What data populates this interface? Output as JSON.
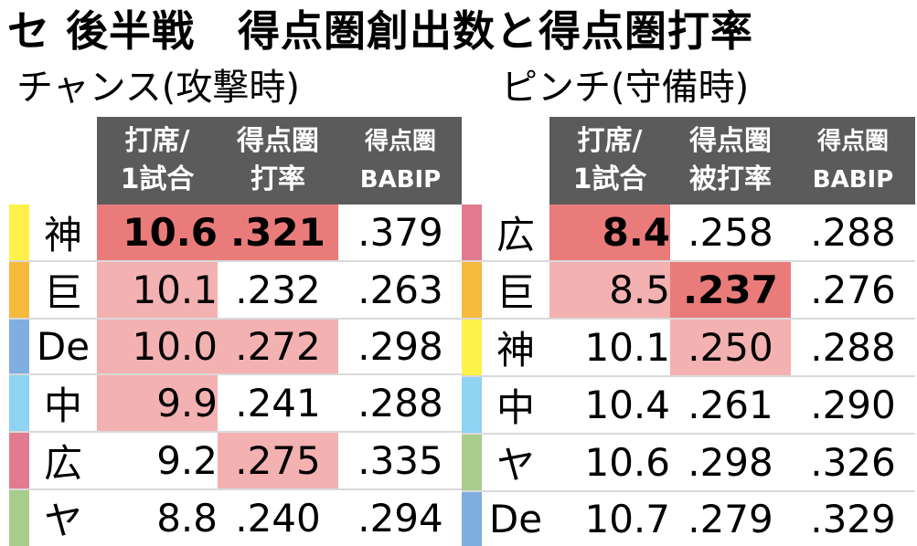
{
  "title": "セ 後半戦　得点圏創出数と得点圏打率",
  "colors": {
    "header_bg": "#5b5b5b",
    "highlight_strong": "#ea7b7b",
    "highlight_light": "#f3b1b1",
    "row_divider": "#d9d9d9",
    "team_colors": {
      "神": "#fdf14a",
      "巨": "#f5b93c",
      "De": "#7faee0",
      "中": "#8fd3f3",
      "広": "#e27b8f",
      "ヤ": "#a8cd8a"
    }
  },
  "chart_data": [
    {
      "type": "table",
      "title": "チャンス(攻撃時)",
      "columns": [
        {
          "line1": "打席/",
          "line2": "1試合"
        },
        {
          "line1": "得点圏",
          "line2": "打率"
        },
        {
          "line1": "得点圏",
          "line2": "BABIP"
        }
      ],
      "rows": [
        {
          "team": "神",
          "team_color": "#fdf14a",
          "values": [
            "10.6",
            ".321",
            ".379"
          ],
          "highlight": [
            "strong",
            "strong",
            "none"
          ]
        },
        {
          "team": "巨",
          "team_color": "#f5b93c",
          "values": [
            "10.1",
            ".232",
            ".263"
          ],
          "highlight": [
            "light",
            "none",
            "none"
          ]
        },
        {
          "team": "De",
          "team_color": "#7faee0",
          "values": [
            "10.0",
            ".272",
            ".298"
          ],
          "highlight": [
            "light",
            "light",
            "none"
          ]
        },
        {
          "team": "中",
          "team_color": "#8fd3f3",
          "values": [
            "9.9",
            ".241",
            ".288"
          ],
          "highlight": [
            "light",
            "none",
            "none"
          ]
        },
        {
          "team": "広",
          "team_color": "#e27b8f",
          "values": [
            "9.2",
            ".275",
            ".335"
          ],
          "highlight": [
            "none",
            "light",
            "none"
          ]
        },
        {
          "team": "ヤ",
          "team_color": "#a8cd8a",
          "values": [
            "8.8",
            ".240",
            ".294"
          ],
          "highlight": [
            "none",
            "none",
            "none"
          ]
        }
      ]
    },
    {
      "type": "table",
      "title": "ピンチ(守備時)",
      "columns": [
        {
          "line1": "打席/",
          "line2": "1試合"
        },
        {
          "line1": "得点圏",
          "line2": "被打率"
        },
        {
          "line1": "得点圏",
          "line2": "BABIP"
        }
      ],
      "rows": [
        {
          "team": "広",
          "team_color": "#e27b8f",
          "values": [
            "8.4",
            ".258",
            ".288"
          ],
          "highlight": [
            "strong",
            "none",
            "none"
          ]
        },
        {
          "team": "巨",
          "team_color": "#f5b93c",
          "values": [
            "8.5",
            ".237",
            ".276"
          ],
          "highlight": [
            "light",
            "strong",
            "none"
          ]
        },
        {
          "team": "神",
          "team_color": "#fdf14a",
          "values": [
            "10.1",
            ".250",
            ".288"
          ],
          "highlight": [
            "none",
            "light",
            "none"
          ]
        },
        {
          "team": "中",
          "team_color": "#8fd3f3",
          "values": [
            "10.4",
            ".261",
            ".290"
          ],
          "highlight": [
            "none",
            "none",
            "none"
          ]
        },
        {
          "team": "ヤ",
          "team_color": "#a8cd8a",
          "values": [
            "10.6",
            ".298",
            ".326"
          ],
          "highlight": [
            "none",
            "none",
            "none"
          ]
        },
        {
          "team": "De",
          "team_color": "#7faee0",
          "values": [
            "10.7",
            ".279",
            ".329"
          ],
          "highlight": [
            "none",
            "none",
            "none"
          ]
        }
      ]
    }
  ]
}
